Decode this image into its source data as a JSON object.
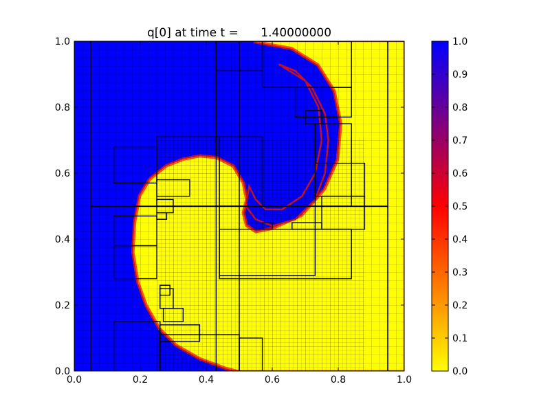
{
  "chart_data": {
    "type": "heatmap",
    "title": "q[0] at time t =      1.40000000",
    "xlabel": "",
    "ylabel": "",
    "xlim": [
      0.0,
      1.0
    ],
    "ylim": [
      0.0,
      1.0
    ],
    "x_ticks": [
      "0.0",
      "0.2",
      "0.4",
      "0.6",
      "0.8",
      "1.0"
    ],
    "y_ticks": [
      "0.0",
      "0.2",
      "0.4",
      "0.6",
      "0.8",
      "1.0"
    ],
    "colorbar": {
      "min": 0.0,
      "max": 1.0,
      "ticks": [
        "0.0",
        "0.1",
        "0.2",
        "0.3",
        "0.4",
        "0.5",
        "0.6",
        "0.7",
        "0.8",
        "0.9",
        "1.0"
      ],
      "colormap": [
        "#ffff00",
        "#ff0000",
        "#0000ff"
      ]
    },
    "field": {
      "description_value_high": 1.0,
      "description_value_low": 0.0,
      "interface": "spiral",
      "high_color": "#0000ff",
      "low_color": "#ffff00"
    },
    "amr_patches": [
      [
        0.05,
        0.0,
        0.95,
        1.0
      ],
      [
        0.0,
        0.0,
        0.05,
        1.0
      ],
      [
        0.95,
        0.0,
        1.0,
        1.0
      ],
      [
        0.43,
        0.0,
        0.5,
        1.0
      ],
      [
        0.05,
        0.5,
        0.95,
        0.5
      ],
      [
        0.43,
        0.91,
        0.57,
        1.0
      ],
      [
        0.57,
        0.86,
        0.84,
        1.0
      ],
      [
        0.67,
        0.77,
        0.84,
        0.86
      ],
      [
        0.7,
        0.75,
        0.75,
        0.79
      ],
      [
        0.73,
        0.5,
        0.84,
        0.75
      ],
      [
        0.73,
        0.53,
        0.88,
        0.63
      ],
      [
        0.75,
        0.43,
        0.88,
        0.53
      ],
      [
        0.66,
        0.43,
        0.75,
        0.45
      ],
      [
        0.57,
        0.43,
        0.6,
        0.45
      ],
      [
        0.44,
        0.29,
        0.73,
        0.5
      ],
      [
        0.44,
        0.28,
        0.84,
        0.43
      ],
      [
        0.25,
        0.5,
        0.57,
        0.71
      ],
      [
        0.44,
        0.5,
        0.57,
        0.71
      ],
      [
        0.12,
        0.57,
        0.25,
        0.68
      ],
      [
        0.25,
        0.53,
        0.35,
        0.58
      ],
      [
        0.25,
        0.48,
        0.3,
        0.52
      ],
      [
        0.25,
        0.46,
        0.28,
        0.48
      ],
      [
        0.12,
        0.38,
        0.25,
        0.47
      ],
      [
        0.12,
        0.28,
        0.25,
        0.38
      ],
      [
        0.12,
        0.0,
        0.26,
        0.15
      ],
      [
        0.26,
        0.0,
        0.5,
        0.11
      ],
      [
        0.27,
        0.15,
        0.33,
        0.19
      ],
      [
        0.26,
        0.19,
        0.3,
        0.25
      ],
      [
        0.26,
        0.09,
        0.38,
        0.14
      ],
      [
        0.5,
        0.0,
        0.57,
        0.1
      ],
      [
        0.26,
        0.23,
        0.29,
        0.26
      ]
    ]
  }
}
